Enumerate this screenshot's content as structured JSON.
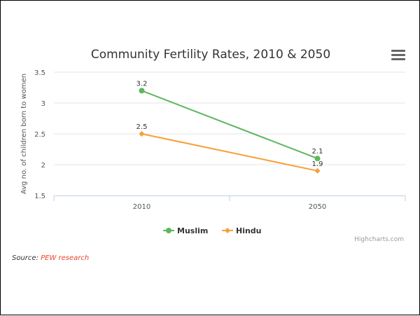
{
  "chart_data": {
    "type": "line",
    "title": "Community Fertility Rates, 2010 & 2050",
    "ylabel": "Avg no. of children born to women",
    "xlabel": "",
    "categories": [
      "2010",
      "2050"
    ],
    "ylim": [
      1.5,
      3.5
    ],
    "yticks": [
      "1.5",
      "2",
      "2.5",
      "3",
      "3.5"
    ],
    "grid": true,
    "legend_position": "bottom",
    "series": [
      {
        "name": "Muslim",
        "values": [
          3.2,
          2.1
        ],
        "labels": [
          "3.2",
          "2.1"
        ],
        "color": "#5cb85c"
      },
      {
        "name": "Hindu",
        "values": [
          2.5,
          1.9
        ],
        "labels": [
          "2.5",
          "1.9"
        ],
        "color": "#f7a035"
      }
    ]
  },
  "credits": "Highcharts.com",
  "source": {
    "prefix": "Source: ",
    "link_text": "PEW research"
  },
  "menu_icon": "hamburger-menu-icon"
}
